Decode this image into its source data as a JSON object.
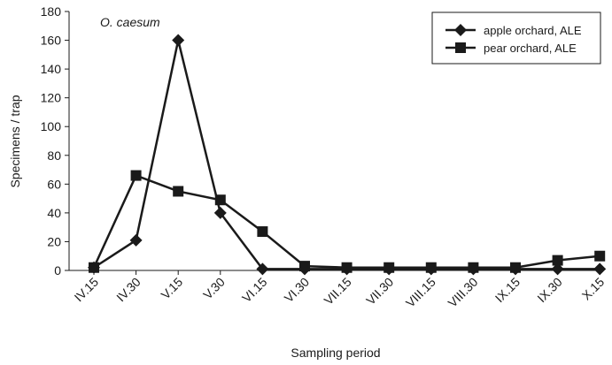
{
  "chart_data": {
    "type": "line",
    "title": "",
    "annotation": "O. caesum",
    "xlabel": "Sampling period",
    "ylabel": "Specimens / trap",
    "categories": [
      "IV.15",
      "IV.30",
      "V.15",
      "V.30",
      "VI.15",
      "VI.30",
      "VII.15",
      "VII.30",
      "VIII.15",
      "VIII.30",
      "IX.15",
      "IX.30",
      "X.15"
    ],
    "ylim": [
      0,
      180
    ],
    "yticks": [
      0,
      20,
      40,
      60,
      80,
      100,
      120,
      140,
      160,
      180
    ],
    "grid": false,
    "legend_position": "top-right",
    "series": [
      {
        "name": "apple orchard, ALE",
        "marker": "diamond",
        "color": "#1a1a1a",
        "values": [
          2,
          21,
          160,
          40,
          1,
          1,
          1,
          1,
          1,
          1,
          1,
          1,
          1
        ]
      },
      {
        "name": "pear orchard, ALE",
        "marker": "square",
        "color": "#1a1a1a",
        "values": [
          2,
          66,
          55,
          49,
          27,
          3,
          2,
          2,
          2,
          2,
          2,
          7,
          10
        ]
      }
    ]
  }
}
